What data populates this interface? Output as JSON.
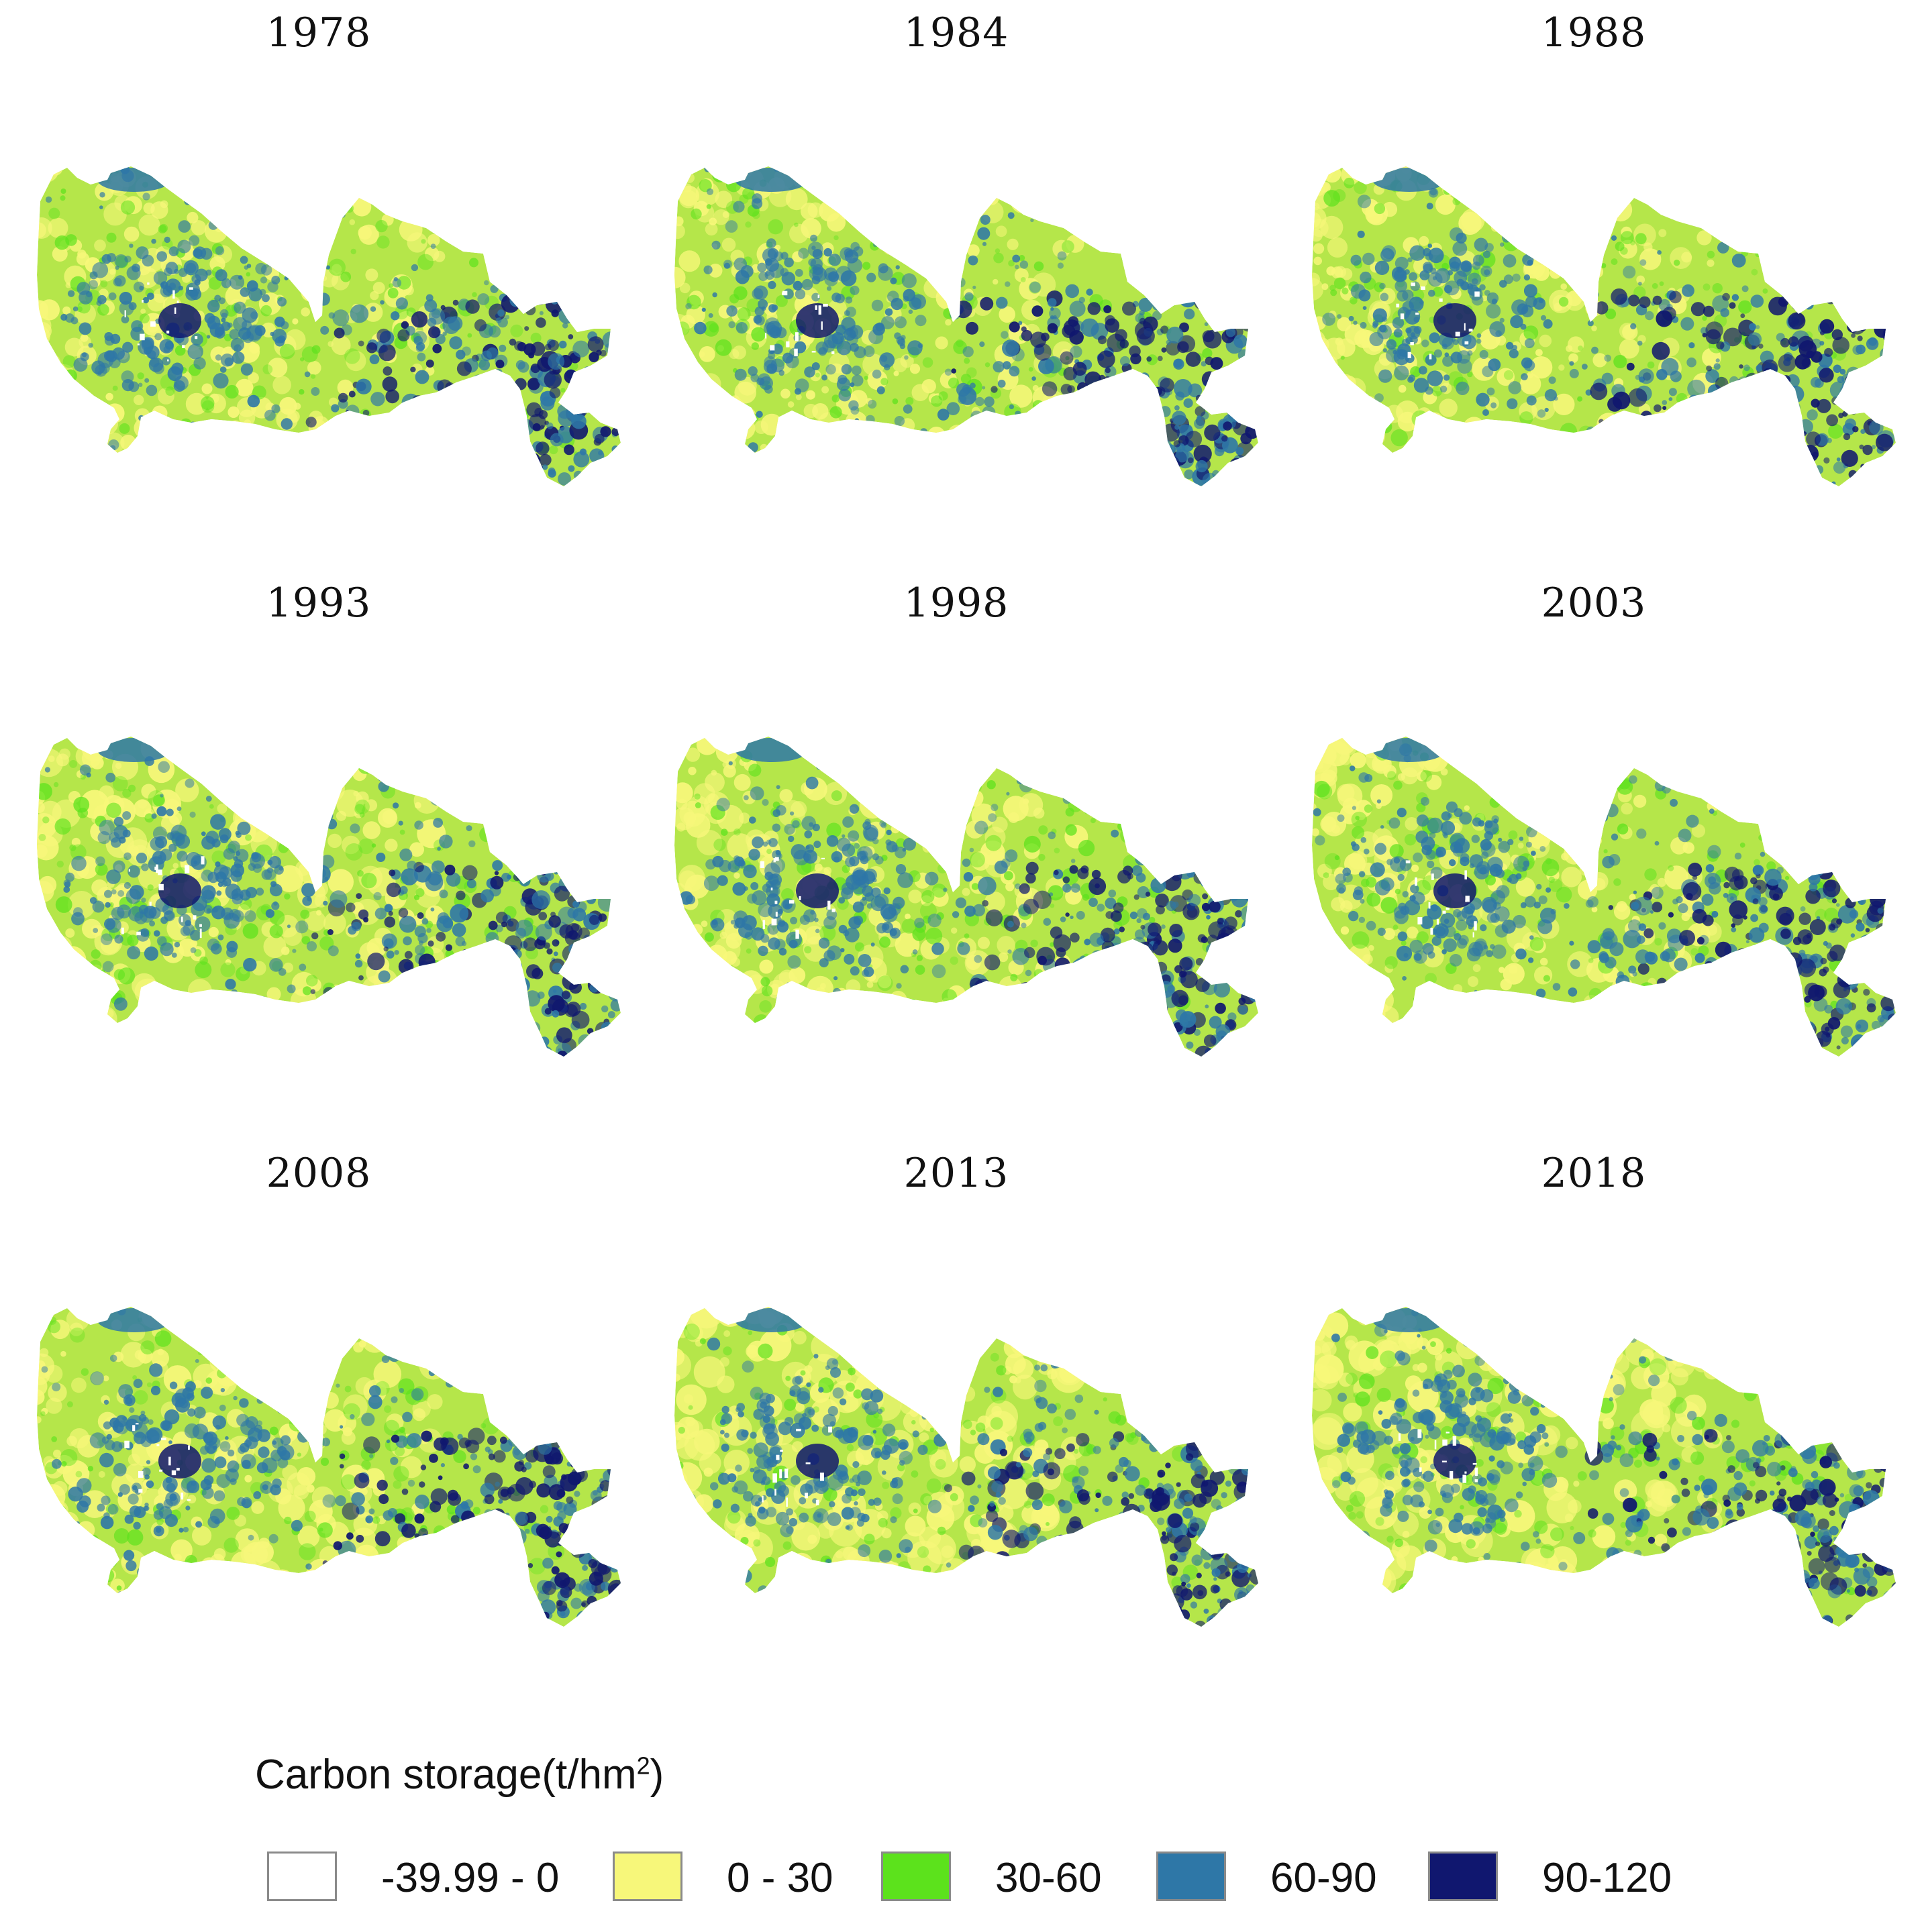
{
  "panels": [
    {
      "year": "1978"
    },
    {
      "year": "1984"
    },
    {
      "year": "1988"
    },
    {
      "year": "1993"
    },
    {
      "year": "1998"
    },
    {
      "year": "2003"
    },
    {
      "year": "2008"
    },
    {
      "year": "2013"
    },
    {
      "year": "2018"
    }
  ],
  "legend": {
    "title": "Carbon storage(t/hm",
    "title_sup": "2",
    "title_close": ")",
    "classes": [
      {
        "label": "-39.99 - 0",
        "color": "#ffffff"
      },
      {
        "label": "0 - 30",
        "color": "#f7f77a"
      },
      {
        "label": "30-60",
        "color": "#5ce21c"
      },
      {
        "label": "60-90",
        "color": "#2e77a7"
      },
      {
        "label": "90-120",
        "color": "#10176f"
      }
    ]
  }
}
